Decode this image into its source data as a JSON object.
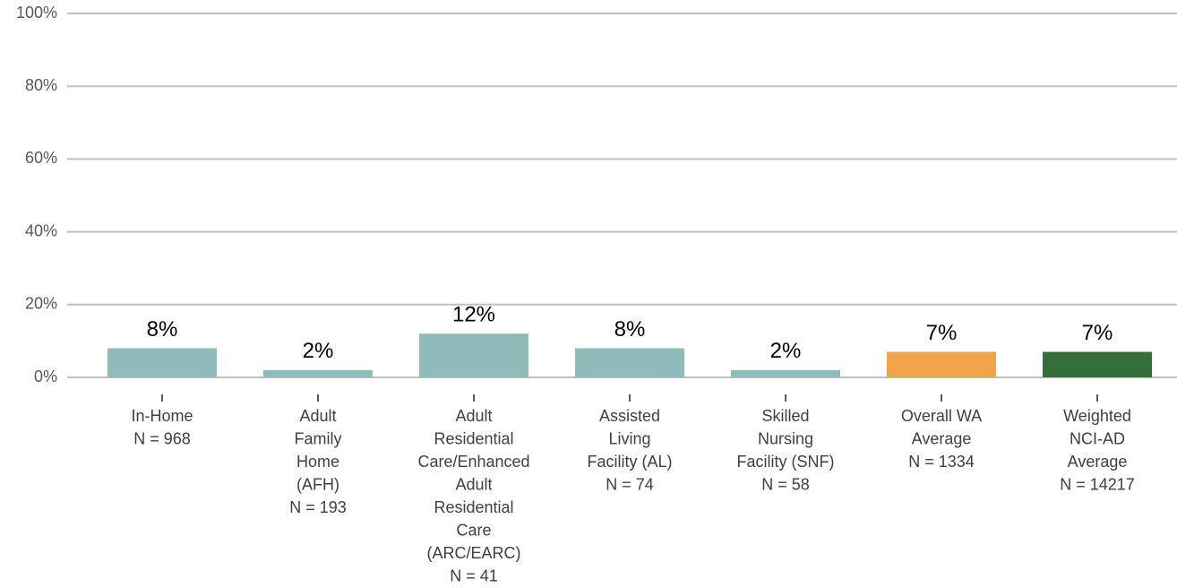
{
  "chart_data": {
    "type": "bar",
    "categories": [
      "In-Home\nN = 968",
      "Adult\nFamily\nHome\n(AFH)\nN = 193",
      "Adult\nResidential\nCare/Enhanced\nAdult\nResidential\nCare\n(ARC/EARC)\nN = 41",
      "Assisted\nLiving\nFacility (AL)\nN = 74",
      "Skilled\nNursing\nFacility (SNF)\nN = 58",
      "Overall WA\nAverage\nN = 1334",
      "Weighted\nNCI-AD\nAverage\nN = 14217"
    ],
    "values": [
      8,
      2,
      12,
      8,
      2,
      7,
      7
    ],
    "value_labels": [
      "8%",
      "2%",
      "12%",
      "8%",
      "2%",
      "7%",
      "7%"
    ],
    "colors": [
      "#8fbcbb",
      "#8fbcbb",
      "#8fbcbb",
      "#8fbcbb",
      "#8fbcbb",
      "#f0a54a",
      "#346e3a"
    ],
    "ylim": [
      0,
      100
    ],
    "yticks": [
      {
        "value": 0,
        "label": "0%"
      },
      {
        "value": 20,
        "label": "20%"
      },
      {
        "value": 40,
        "label": "40%"
      },
      {
        "value": 60,
        "label": "60%"
      },
      {
        "value": 80,
        "label": "80%"
      },
      {
        "value": 100,
        "label": "100%"
      }
    ],
    "grid": true
  }
}
